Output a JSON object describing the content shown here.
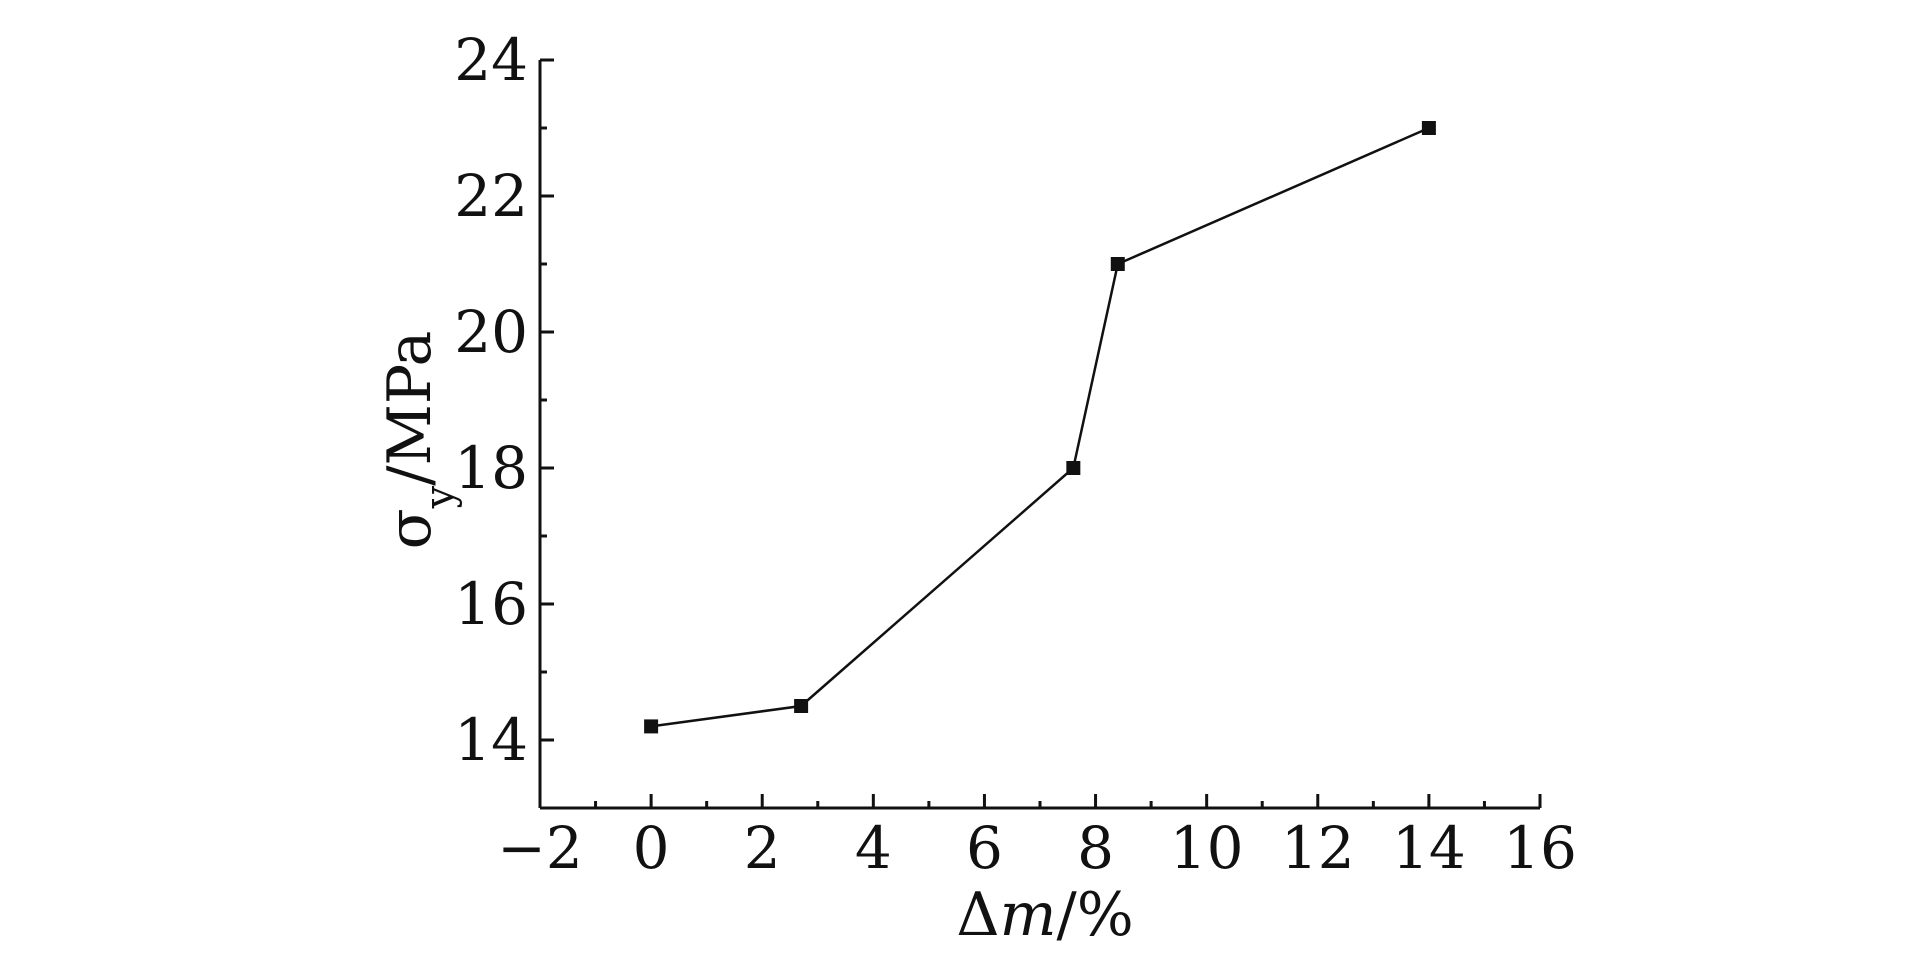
{
  "chart_data": {
    "type": "line",
    "xlabel": "Δm/%",
    "ylabel": "σy/MPa",
    "xlabel_parts": {
      "a": "Δ",
      "b": "m",
      "c": "/%"
    },
    "ylabel_parts": {
      "a": "σ",
      "b": "y",
      "c": "/MPa"
    },
    "xlim": [
      -2,
      16
    ],
    "ylim": [
      13,
      24
    ],
    "x_ticks": [
      -2,
      0,
      2,
      4,
      6,
      8,
      10,
      12,
      14,
      16
    ],
    "x_tick_labels": [
      "−2",
      "0",
      "2",
      "4",
      "6",
      "8",
      "10",
      "12",
      "14",
      "16"
    ],
    "y_ticks": [
      14,
      16,
      18,
      20,
      22,
      24
    ],
    "y_tick_labels": [
      "14",
      "16",
      "18",
      "20",
      "22",
      "24"
    ],
    "grid": false,
    "legend": "none",
    "colors": {
      "line": "#111111",
      "marker": "#111111",
      "axis": "#111111"
    },
    "series": [
      {
        "x": [
          0,
          2.7,
          7.6,
          8.4,
          14
        ],
        "y": [
          14.2,
          14.5,
          18.0,
          21.0,
          23.0
        ],
        "marker": "square"
      }
    ]
  }
}
